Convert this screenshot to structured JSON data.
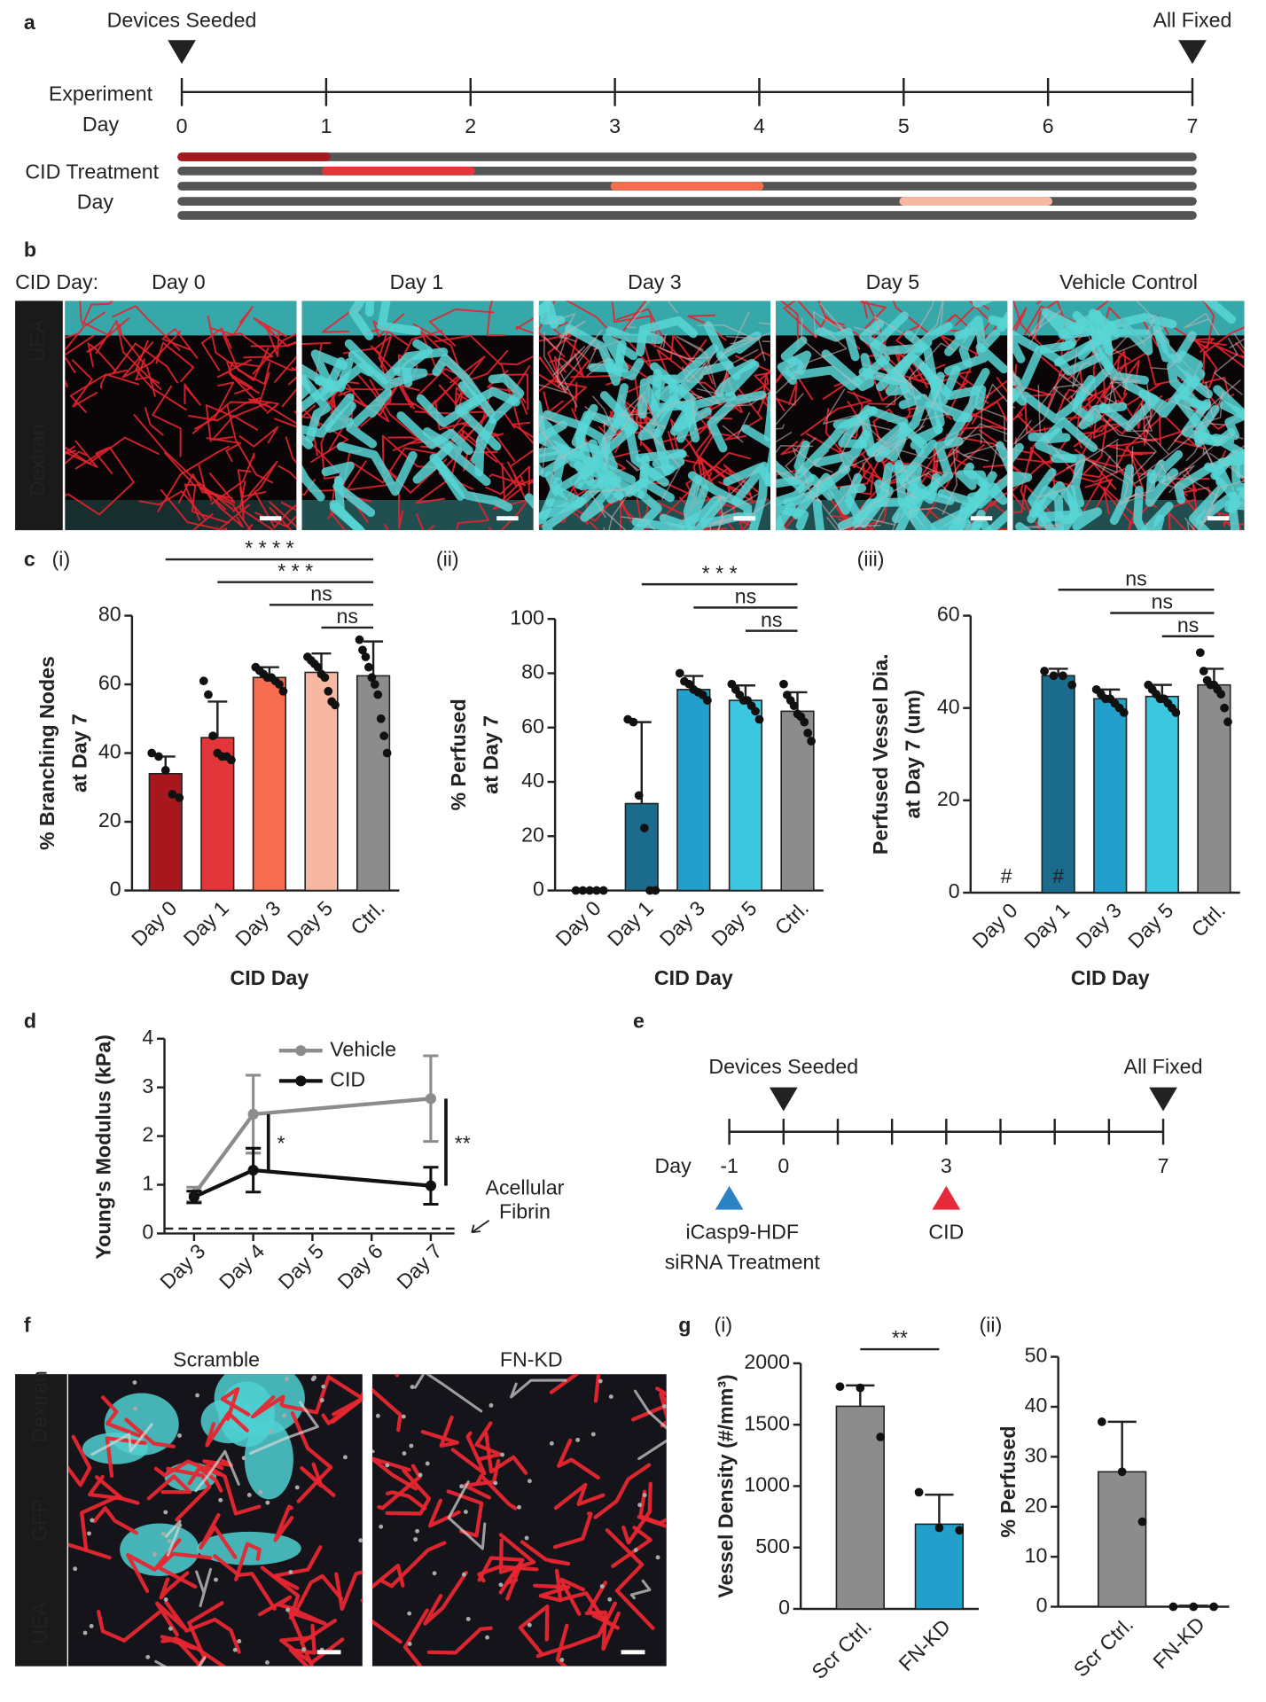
{
  "panel_labels": [
    "a",
    "b",
    "c",
    "d",
    "e",
    "f",
    "g"
  ],
  "timeline": {
    "start_label": "Devices Seeded",
    "end_label": "All Fixed",
    "axis_label": [
      "Experiment",
      "Day"
    ],
    "days": [
      0,
      1,
      2,
      3,
      4,
      5,
      6,
      7
    ],
    "treatment_label": [
      "CID Treatment",
      "Day"
    ],
    "treatments": [
      {
        "start": 0,
        "end": 1,
        "color": "#a8161e"
      },
      {
        "start": 1,
        "end": 2,
        "color": "#e2363a"
      },
      {
        "start": 3,
        "end": 4,
        "color": "#f66c4f"
      },
      {
        "start": 5,
        "end": 6,
        "color": "#f7b7a0"
      }
    ]
  },
  "images_b": {
    "row_label": "CID Day:",
    "columns": [
      "Day 0",
      "Day 1",
      "Day 3",
      "Day 5",
      "Vehicle Control"
    ],
    "stains": [
      "UEA",
      "Dextran"
    ]
  },
  "chart_data": [
    {
      "type": "bar",
      "label": "(i)",
      "ylabel": [
        "% Branching Nodes",
        "at Day 7"
      ],
      "xlabel": "CID Day",
      "categories": [
        "Day 0",
        "Day 1",
        "Day 3",
        "Day 5",
        "Ctrl."
      ],
      "values": [
        34,
        44.5,
        62,
        63.5,
        62.5
      ],
      "errors": [
        5,
        10.5,
        3,
        5.5,
        10
      ],
      "colors": [
        "#a8161e",
        "#e2363a",
        "#f66c4f",
        "#f7b7a0",
        "#8c8c8c"
      ],
      "points": [
        [
          40,
          39,
          35,
          28,
          27
        ],
        [
          61,
          57,
          45,
          40,
          39,
          39,
          38
        ],
        [
          65,
          64,
          63,
          62,
          62,
          61,
          60,
          58
        ],
        [
          68,
          67,
          66,
          65,
          63,
          62,
          58,
          55,
          54
        ],
        [
          73,
          70,
          68,
          65,
          62,
          60,
          57,
          50,
          45,
          40
        ]
      ],
      "ylim": [
        0,
        80
      ],
      "yticks": [
        0,
        20,
        40,
        60,
        80
      ],
      "significance": [
        {
          "from": 0,
          "to": 4,
          "label": "* * * *"
        },
        {
          "from": 1,
          "to": 4,
          "label": "* * *"
        },
        {
          "from": 2,
          "to": 4,
          "label": "ns"
        },
        {
          "from": 3,
          "to": 4,
          "label": "ns"
        }
      ]
    },
    {
      "type": "bar",
      "label": "(ii)",
      "ylabel": [
        "% Perfused",
        "at Day 7"
      ],
      "xlabel": "CID Day",
      "categories": [
        "Day 0",
        "Day 1",
        "Day 3",
        "Day 5",
        "Ctrl."
      ],
      "values": [
        0,
        32,
        74,
        70,
        66
      ],
      "errors": [
        0,
        30,
        5,
        5.5,
        7
      ],
      "colors": [
        "#1b6b8c",
        "#1b6b8c",
        "#229fca",
        "#3dc6df",
        "#8c8c8c"
      ],
      "points": [
        [
          0,
          0,
          0,
          0,
          0
        ],
        [
          63,
          62,
          35,
          23,
          0,
          0
        ],
        [
          80,
          77,
          76,
          74,
          73,
          72,
          70
        ],
        [
          76,
          74,
          72,
          70,
          70,
          68,
          66,
          63
        ],
        [
          76,
          72,
          70,
          68,
          65,
          64,
          62,
          58,
          55
        ]
      ],
      "ylim": [
        0,
        100
      ],
      "yticks": [
        0,
        20,
        40,
        60,
        80,
        100
      ],
      "significance": [
        {
          "from": 1,
          "to": 4,
          "label": "* * *"
        },
        {
          "from": 2,
          "to": 4,
          "label": "ns"
        },
        {
          "from": 3,
          "to": 4,
          "label": "ns"
        }
      ]
    },
    {
      "type": "bar",
      "label": "(iii)",
      "ylabel": [
        "Perfused Vessel Dia.",
        "at Day 7 (um)"
      ],
      "xlabel": "CID Day",
      "categories": [
        "Day 0",
        "Day 1",
        "Day 3",
        "Day 5",
        "Ctrl."
      ],
      "values": [
        null,
        47,
        42,
        42.5,
        45
      ],
      "errors": [
        null,
        1.5,
        2,
        2.5,
        3.5
      ],
      "colors": [
        null,
        "#1b6b8c",
        "#229fca",
        "#3dc6df",
        "#8c8c8c"
      ],
      "points": [
        [],
        [
          48,
          47,
          47,
          45
        ],
        [
          44,
          43,
          42,
          42,
          41,
          40,
          39
        ],
        [
          45,
          44,
          43,
          42,
          42,
          41,
          40,
          39
        ],
        [
          52,
          48,
          46,
          45,
          45,
          44,
          43,
          40,
          37
        ]
      ],
      "ylim": [
        0,
        60
      ],
      "yticks": [
        0,
        20,
        40,
        60
      ],
      "annotations": [
        {
          "index": 0,
          "label": "#"
        },
        {
          "index": 1,
          "label": "#"
        }
      ],
      "significance": [
        {
          "from": 1,
          "to": 4,
          "label": "ns"
        },
        {
          "from": 2,
          "to": 4,
          "label": "ns"
        },
        {
          "from": 3,
          "to": 4,
          "label": "ns"
        }
      ]
    },
    {
      "type": "bar",
      "label": "(i)",
      "ylabel": [
        "Vessel Density (#/mm³)"
      ],
      "categories": [
        "Scr Ctrl.",
        "FN-KD"
      ],
      "values": [
        1650,
        690
      ],
      "errors": [
        170,
        240
      ],
      "colors": [
        "#8c8c8c",
        "#229fca"
      ],
      "points": [
        [
          1810,
          1800,
          1400
        ],
        [
          950,
          660,
          640
        ]
      ],
      "ylim": [
        0,
        2000
      ],
      "yticks": [
        0,
        500,
        1000,
        1500,
        2000
      ],
      "significance": [
        {
          "from": 0,
          "to": 1,
          "label": "**"
        }
      ]
    },
    {
      "type": "bar",
      "label": "(ii)",
      "ylabel": [
        "% Perfused"
      ],
      "categories": [
        "Scr Ctrl.",
        "FN-KD"
      ],
      "values": [
        27,
        0.2
      ],
      "errors": [
        10,
        0
      ],
      "colors": [
        "#8c8c8c",
        "#229fca"
      ],
      "points": [
        [
          37,
          27,
          17
        ],
        [
          0,
          0,
          0
        ]
      ],
      "ylim": [
        0,
        50
      ],
      "yticks": [
        0,
        10,
        20,
        30,
        40,
        50
      ],
      "significance": []
    },
    {
      "type": "line",
      "ylabel": "Young's Modulus (kPa)",
      "x": [
        3,
        4,
        7
      ],
      "xlim": [
        2.5,
        7.4
      ],
      "xticks": [
        {
          "value": 3,
          "label": "Day 3"
        },
        {
          "value": 4,
          "label": "Day 4"
        },
        {
          "value": 5,
          "label": "Day 5"
        },
        {
          "value": 6,
          "label": "Day 6"
        },
        {
          "value": 7,
          "label": "Day 7"
        }
      ],
      "ylim": [
        0,
        4
      ],
      "yticks": [
        0,
        1,
        2,
        3,
        4
      ],
      "series": [
        {
          "name": "Vehicle",
          "color": "#8c8c8c",
          "values": [
            0.8,
            2.45,
            2.77
          ],
          "errors": [
            0.15,
            0.8,
            0.88
          ]
        },
        {
          "name": "CID",
          "color": "#111111",
          "values": [
            0.75,
            1.3,
            0.98
          ],
          "errors": [
            0.12,
            0.45,
            0.38
          ]
        }
      ],
      "reference_line": {
        "value": 0.1,
        "label": [
          "Acellular",
          "Fibrin"
        ]
      },
      "significance": [
        {
          "index": 1,
          "label": "*"
        },
        {
          "index": 2,
          "label": "**"
        }
      ]
    }
  ],
  "timeline_e": {
    "start_label": "Devices Seeded",
    "end_label": "All Fixed",
    "axis_label": "Day",
    "ticks": [
      -1,
      0,
      1,
      2,
      3,
      4,
      5,
      6,
      7
    ],
    "labeled_ticks": [
      -1,
      0,
      3,
      7
    ],
    "events": [
      {
        "day": -1,
        "label": [
          "iCasp9-HDF",
          "siRNA Treatment"
        ],
        "color": "#2b83c6"
      },
      {
        "day": 3,
        "label": [
          "CID"
        ],
        "color": "#e62a3b"
      }
    ]
  },
  "images_f": {
    "columns": [
      "Scramble",
      "FN-KD"
    ],
    "stains": [
      "Dextran",
      "GFP",
      "UEA"
    ]
  }
}
